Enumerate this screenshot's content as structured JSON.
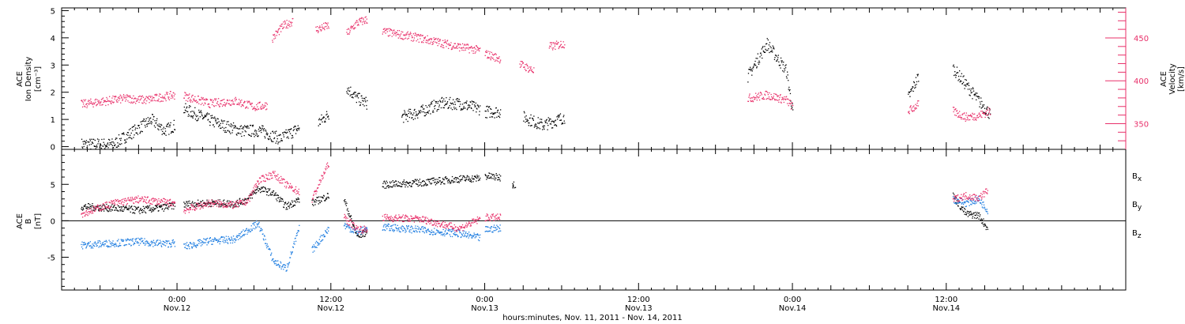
{
  "chart_data": [
    {
      "type": "scatter",
      "ylabel_left": [
        "ACE",
        "Ion Density",
        "[cm⁻³]"
      ],
      "ylabel_right": [
        "ACE",
        "Velocity",
        "[km/s]"
      ],
      "yticks_left": [
        "0",
        "1",
        "2",
        "3",
        "4",
        "5"
      ],
      "yticks_right": [
        "350",
        "400",
        "450"
      ],
      "ylim_left": [
        -0.1,
        5.1
      ],
      "ylim_right": [
        320,
        485
      ],
      "colors": {
        "density": "#000000",
        "velocity": "#e8306a"
      },
      "series": [
        {
          "name": "",
          "color": "#000000",
          "axis": "left",
          "segments": [
            {
              "t": [
                -7.5,
                -5,
                -3,
                -2,
                -1,
                -0.2
              ],
              "y": [
                0.1,
                0.1,
                0.7,
                1.0,
                0.6,
                0.8
              ]
            },
            {
              "t": [
                0.5,
                2,
                3.5,
                5,
                6.5,
                8,
                9.5
              ],
              "y": [
                1.4,
                1.1,
                0.8,
                0.6,
                0.6,
                0.3,
                0.7
              ]
            },
            {
              "t": [
                11,
                11.8
              ],
              "y": [
                0.9,
                1.2
              ]
            },
            {
              "t": [
                13.2,
                14,
                14.8
              ],
              "y": [
                2.2,
                1.8,
                1.6
              ]
            },
            {
              "t": [
                17.5,
                19,
                20.5,
                22,
                23.6
              ],
              "y": [
                1.1,
                1.3,
                1.6,
                1.6,
                1.4
              ]
            },
            {
              "t": [
                24,
                25.2
              ],
              "y": [
                1.3,
                1.3
              ]
            },
            {
              "t": [
                27,
                28.5,
                30.2
              ],
              "y": [
                1.1,
                0.8,
                1.1
              ]
            },
            {
              "t": [
                44.5,
                46,
                47.5,
                48
              ],
              "y": [
                2.6,
                3.8,
                2.8,
                1.3
              ]
            },
            {
              "t": [
                57,
                57.8
              ],
              "y": [
                1.8,
                2.6
              ]
            },
            {
              "t": [
                60.5,
                61.5,
                62.5,
                63.4
              ],
              "y": [
                2.9,
                2.3,
                1.7,
                1.2
              ]
            }
          ]
        },
        {
          "name": "",
          "color": "#e8306a",
          "axis": "right",
          "segments": [
            {
              "t": [
                -7.5,
                -6,
                -4,
                -2.5,
                -1,
                -0.2
              ],
              "y": [
                373,
                376,
                380,
                378,
                382,
                384
              ]
            },
            {
              "t": [
                0.5,
                2.5,
                4.5,
                6,
                7
              ],
              "y": [
                383,
                374,
                377,
                370,
                372
              ]
            },
            {
              "t": [
                7.4,
                8.3,
                9
              ],
              "y": [
                450,
                465,
                470
              ]
            },
            {
              "t": [
                10.8,
                11.8
              ],
              "y": [
                460,
                465
              ]
            },
            {
              "t": [
                13.2,
                14,
                14.8
              ],
              "y": [
                455,
                468,
                472
              ]
            },
            {
              "t": [
                16,
                19,
                22,
                23.6
              ],
              "y": [
                458,
                450,
                440,
                436
              ]
            },
            {
              "t": [
                24,
                25.2
              ],
              "y": [
                432,
                426
              ]
            },
            {
              "t": [
                26.7,
                27.8
              ],
              "y": [
                420,
                412
              ]
            },
            {
              "t": [
                29,
                30.2
              ],
              "y": [
                440,
                444
              ]
            },
            {
              "t": [
                44.5,
                46,
                47.5,
                48
              ],
              "y": [
                380,
                384,
                378,
                370
              ]
            },
            {
              "t": [
                57,
                57.8
              ],
              "y": [
                365,
                373
              ]
            },
            {
              "t": [
                60.5,
                61.5,
                62.5,
                63.4
              ],
              "y": [
                365,
                358,
                360,
                365
              ]
            }
          ]
        }
      ]
    },
    {
      "type": "scatter",
      "ylabel": [
        "ACE",
        "B",
        "[nT]"
      ],
      "yticks": [
        "-5",
        "0",
        "5"
      ],
      "ylim": [
        -9.5,
        9.8
      ],
      "zero_line": true,
      "legend_placement": "right",
      "legend": [
        {
          "name": "B",
          "sub": "x",
          "color": "#000000"
        },
        {
          "name": "B",
          "sub": "y",
          "color": "#1e7de0"
        },
        {
          "name": "B",
          "sub": "z",
          "color": "#e8306a"
        }
      ],
      "series": [
        {
          "name": "Bx",
          "color": "#000000",
          "segments": [
            {
              "t": [
                -7.5,
                -5,
                -3,
                -1,
                -0.2
              ],
              "y": [
                2.0,
                1.8,
                1.5,
                1.9,
                2.2
              ]
            },
            {
              "t": [
                0.5,
                2.5,
                4.5,
                5.5,
                6.3,
                7.5,
                8.5,
                9.5
              ],
              "y": [
                2.3,
                2.5,
                2.4,
                3.0,
                4.5,
                3.8,
                2.0,
                3.0
              ]
            },
            {
              "t": [
                10.5,
                11.8
              ],
              "y": [
                2.5,
                3.5
              ]
            },
            {
              "t": [
                13,
                14,
                14.8
              ],
              "y": [
                3.0,
                -2.0,
                -1.5
              ]
            },
            {
              "t": [
                16,
                19,
                22,
                23.6
              ],
              "y": [
                5.0,
                5.3,
                5.8,
                5.9
              ]
            },
            {
              "t": [
                24,
                25.2
              ],
              "y": [
                6.2,
                6.0
              ]
            },
            {
              "t": [
                26.3
              ],
              "y": [
                5.0
              ]
            },
            {
              "t": [
                60.5,
                61.5,
                62.5,
                63.2
              ],
              "y": [
                3.5,
                1.0,
                0.8,
                -1.0
              ]
            }
          ]
        },
        {
          "name": "By",
          "color": "#1e7de0",
          "segments": [
            {
              "t": [
                -7.5,
                -5,
                -3,
                -1,
                -0.2
              ],
              "y": [
                -3.3,
                -3.0,
                -2.8,
                -3.1,
                -3.0
              ]
            },
            {
              "t": [
                0.5,
                2.5,
                4.5,
                5.5,
                6.3,
                7.5,
                8.5,
                9.5
              ],
              "y": [
                -3.5,
                -2.7,
                -2.5,
                -1.2,
                -0.3,
                -5.5,
                -6.5,
                -1.0
              ]
            },
            {
              "t": [
                10.5,
                11.8
              ],
              "y": [
                -4.0,
                -1.0
              ]
            },
            {
              "t": [
                13,
                14,
                14.8
              ],
              "y": [
                -0.5,
                -1.5,
                -1.0
              ]
            },
            {
              "t": [
                16,
                19,
                22,
                23.6
              ],
              "y": [
                -0.8,
                -1.2,
                -1.7,
                -2.3
              ]
            },
            {
              "t": [
                24,
                25.2
              ],
              "y": [
                -1.2,
                -0.9
              ]
            },
            {
              "t": [
                60.5,
                61.5,
                62.5,
                63.2
              ],
              "y": [
                3.0,
                2.5,
                3.0,
                1.5
              ]
            }
          ]
        },
        {
          "name": "Bz",
          "color": "#e8306a",
          "segments": [
            {
              "t": [
                -7.5,
                -5,
                -3,
                -1,
                -0.2
              ],
              "y": [
                1.0,
                2.5,
                3.0,
                2.6,
                2.5
              ]
            },
            {
              "t": [
                0.5,
                2.5,
                4.5,
                5.5,
                6.3,
                7.5,
                8.5,
                9.5
              ],
              "y": [
                1.5,
                2.5,
                2.2,
                2.8,
                5.5,
                6.5,
                5.0,
                4.0
              ]
            },
            {
              "t": [
                10.5,
                11.8
              ],
              "y": [
                3.0,
                8.0
              ]
            },
            {
              "t": [
                13,
                14,
                14.8
              ],
              "y": [
                0.5,
                -1.0,
                -1.2
              ]
            },
            {
              "t": [
                16,
                19,
                22,
                23.6
              ],
              "y": [
                0.5,
                0.3,
                -1.0,
                0.3
              ]
            },
            {
              "t": [
                24,
                25.2
              ],
              "y": [
                0.5,
                0.5
              ]
            },
            {
              "t": [
                60.5,
                61.5,
                62.5,
                63.2
              ],
              "y": [
                3.0,
                3.5,
                3.2,
                4.2
              ]
            }
          ]
        }
      ]
    }
  ],
  "x_axis": {
    "xlim": [
      -9,
      74
    ],
    "major_ticks": [
      0,
      12,
      24,
      36,
      48,
      60
    ],
    "tick_labels": [
      {
        "t": 0,
        "time": "0:00",
        "date": "Nov.12"
      },
      {
        "t": 12,
        "time": "12:00",
        "date": "Nov.12"
      },
      {
        "t": 24,
        "time": "0:00",
        "date": "Nov.13"
      },
      {
        "t": 36,
        "time": "12:00",
        "date": "Nov.13"
      },
      {
        "t": 48,
        "time": "0:00",
        "date": "Nov.14"
      },
      {
        "t": 60,
        "time": "12:00",
        "date": "Nov.14"
      }
    ],
    "title": "hours:minutes, Nov. 11, 2011 - Nov. 14, 2011"
  }
}
